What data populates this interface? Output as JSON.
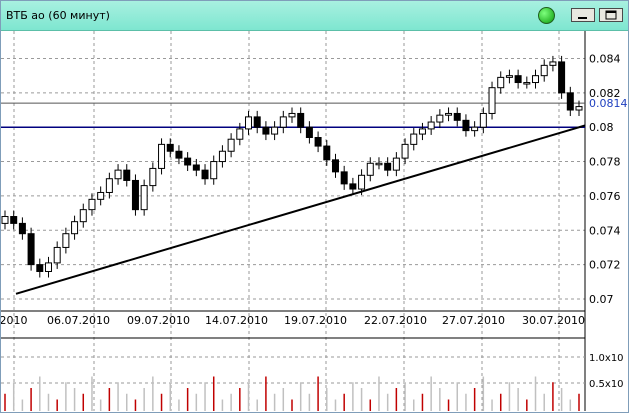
{
  "window": {
    "title": "ВТБ ао (60 минут)"
  },
  "colors": {
    "titlebar": "#8cebd6",
    "grid": "#9a9a9a",
    "candle_up": "#ffffff",
    "candle_down": "#000000",
    "current_price_line": "#00007f",
    "current_price_label": "#1e3fbf",
    "trendline": "#000000",
    "volume_up": "#c0c0c0",
    "volume_down": "#c00000"
  },
  "chart_data": {
    "type": "candlestick",
    "y_axis": {
      "ticks": [
        "0.084",
        "0.082",
        "0.08",
        "0.078",
        "0.076",
        "0.074",
        "0.072",
        "0.07"
      ],
      "tick_values": [
        0.084,
        0.082,
        0.08,
        0.078,
        0.076,
        0.074,
        0.072,
        0.07
      ],
      "range": [
        0.0693,
        0.0856
      ],
      "current_price_label": "0.0814",
      "current_price": 0.0814,
      "horizontal_line": 0.08
    },
    "x_axis": {
      "ticks": [
        ".2010",
        "06.07.2010",
        "09.07.2010",
        "14.07.2010",
        "19.07.2010",
        "22.07.2010",
        "27.07.2010",
        "30.07.2010"
      ]
    },
    "trendline": {
      "from": 0.0703,
      "to": 0.0801
    },
    "close_series": [
      0.0748,
      0.0744,
      0.0738,
      0.072,
      0.0716,
      0.0721,
      0.073,
      0.0738,
      0.0745,
      0.0752,
      0.0758,
      0.0762,
      0.077,
      0.0775,
      0.0769,
      0.0752,
      0.0766,
      0.0776,
      0.079,
      0.0786,
      0.0782,
      0.0778,
      0.0775,
      0.077,
      0.078,
      0.0786,
      0.0793,
      0.0799,
      0.0806,
      0.08,
      0.0796,
      0.08,
      0.0806,
      0.0808,
      0.08,
      0.0794,
      0.0789,
      0.0781,
      0.0774,
      0.0767,
      0.0764,
      0.0772,
      0.0779,
      0.0779,
      0.0775,
      0.0782,
      0.079,
      0.0796,
      0.0799,
      0.0803,
      0.0807,
      0.0808,
      0.0804,
      0.0798,
      0.08,
      0.0808,
      0.0823,
      0.0829,
      0.083,
      0.0826,
      0.0826,
      0.083,
      0.0836,
      0.0838,
      0.082,
      0.081,
      0.0812
    ],
    "volume_axis": {
      "labels": [
        "1.0x10",
        "0.5x10"
      ]
    },
    "volume_series": [
      3,
      5,
      2,
      4,
      6,
      3,
      2,
      5,
      4,
      3,
      6,
      2,
      4,
      5,
      3,
      2,
      4,
      6,
      3,
      5,
      2,
      4,
      3,
      5,
      6,
      2,
      3,
      4,
      5,
      2,
      6,
      3,
      4,
      2,
      5,
      3,
      6,
      4,
      2,
      3,
      5,
      4,
      2,
      6,
      3,
      4,
      5,
      2,
      3,
      6,
      4,
      2,
      5,
      3,
      4,
      6,
      2,
      3,
      5,
      4,
      2,
      6,
      3,
      5,
      4,
      2,
      3
    ]
  }
}
